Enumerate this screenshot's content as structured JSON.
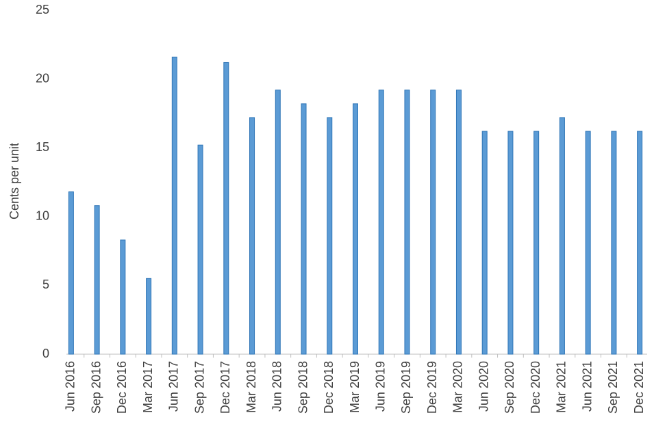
{
  "chart_data": {
    "type": "bar",
    "y_label": "Cents per unit",
    "categories": [
      "Jun 2016",
      "Sep 2016",
      "Dec 2016",
      "Mar 2017",
      "Jun 2017",
      "Sep 2017",
      "Dec 2017",
      "Mar 2018",
      "Jun 2018",
      "Sep 2018",
      "Dec 2018",
      "Mar 2019",
      "Jun 2019",
      "Sep 2019",
      "Dec 2019",
      "Mar 2020",
      "Jun 2020",
      "Sep 2020",
      "Dec 2020",
      "Mar 2021",
      "Jun 2021",
      "Sep 2021",
      "Dec 2021"
    ],
    "values": [
      11.8,
      10.8,
      8.3,
      5.5,
      21.6,
      15.2,
      21.2,
      17.2,
      19.2,
      18.2,
      17.2,
      18.2,
      19.2,
      19.2,
      19.2,
      19.2,
      16.2,
      16.2,
      16.2,
      17.2,
      16.2,
      16.2,
      16.2
    ],
    "color": "#5b9bd5",
    "ylim": [
      0,
      25
    ],
    "yticks": [
      0,
      5,
      10,
      15,
      20,
      25
    ],
    "grid": false
  }
}
